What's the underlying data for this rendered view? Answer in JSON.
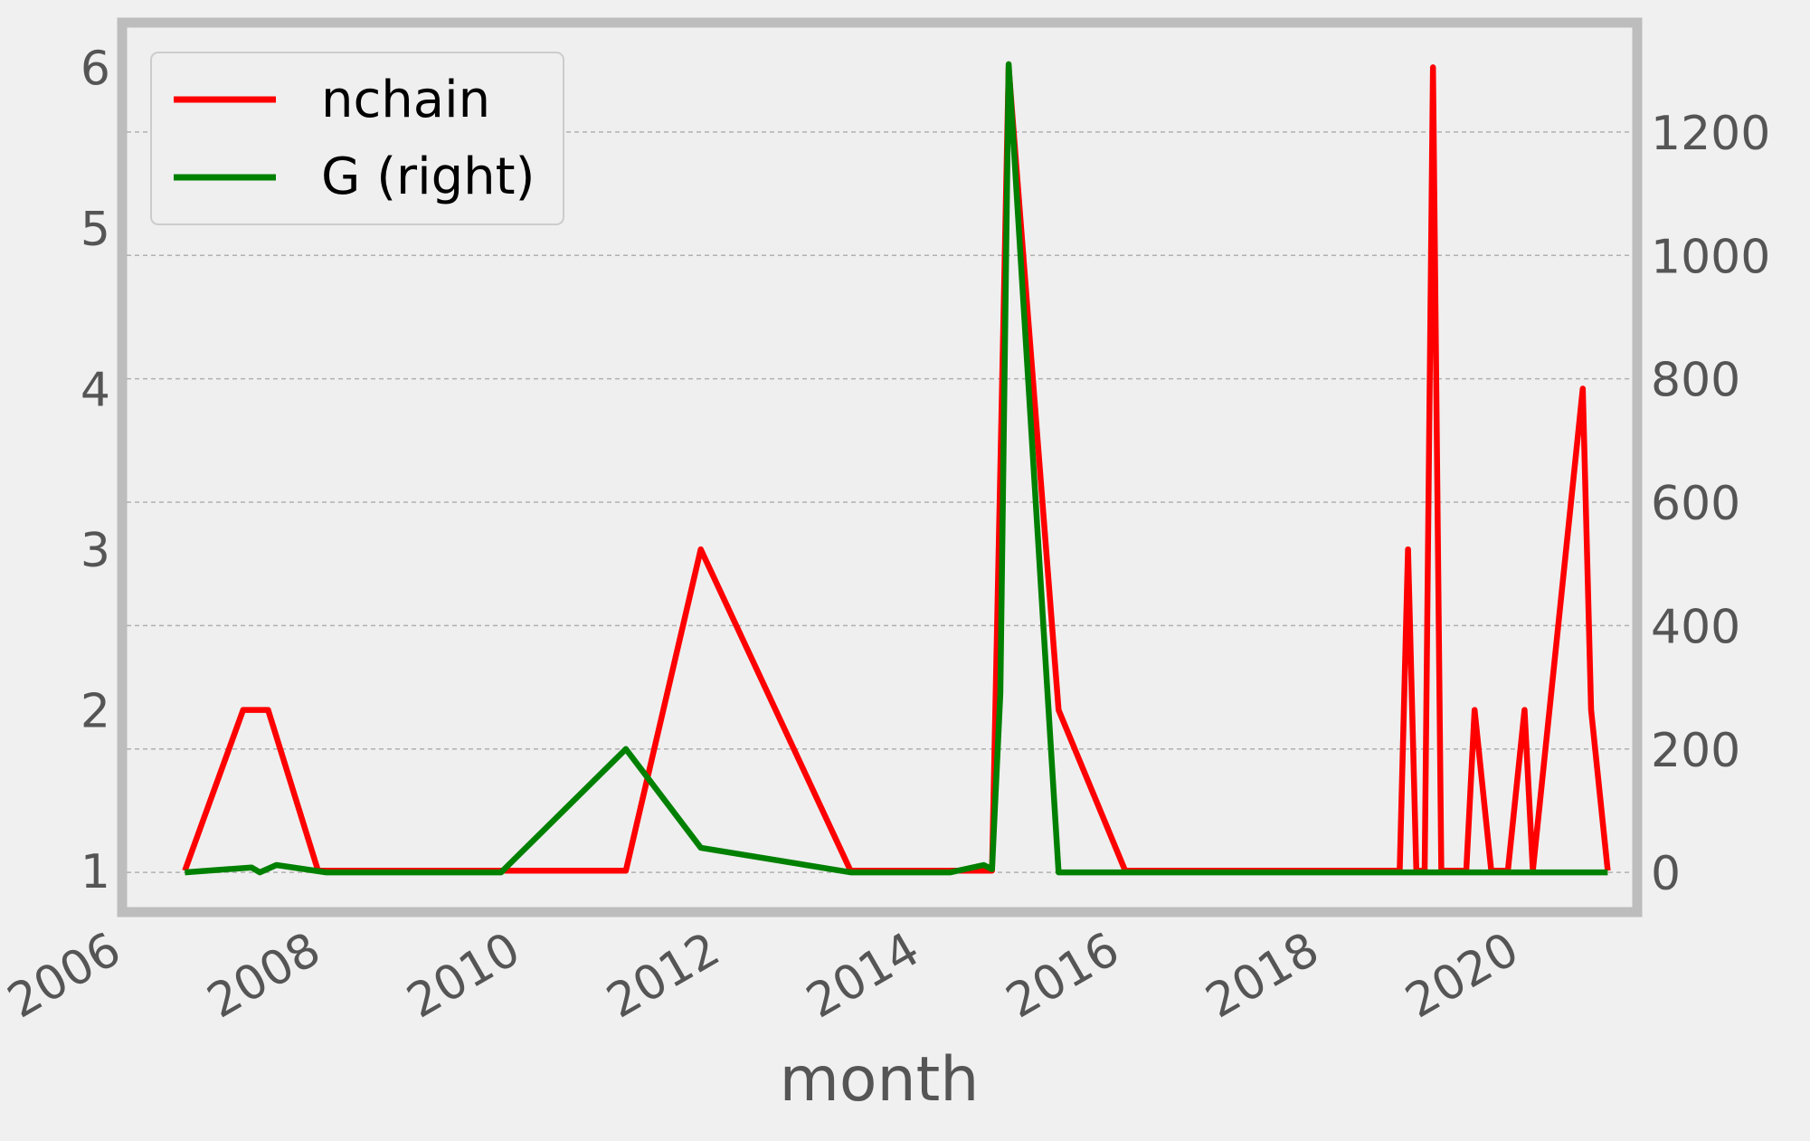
{
  "chart_data": {
    "type": "line",
    "title": "",
    "xlabel": "month",
    "x_ticks": [
      "2006",
      "2008",
      "2010",
      "2012",
      "2014",
      "2016",
      "2018",
      "2020"
    ],
    "y_left_ticks": [
      "1",
      "2",
      "3",
      "4",
      "5",
      "6"
    ],
    "y_right_ticks": [
      "0",
      "200",
      "400",
      "600",
      "800",
      "1000",
      "1200"
    ],
    "xlim": [
      "2006-01",
      "2021-02"
    ],
    "ylim_left": [
      0.77,
      6.25
    ],
    "ylim_right": [
      -57,
      1370
    ],
    "grid": "horizontal, right axis",
    "legend_position": "top-left",
    "colors": {
      "background": "#efefef",
      "frame": "#bdbdbd",
      "grid": "#b0b0b0"
    },
    "series": [
      {
        "name": "nchain",
        "axis": "left",
        "color": "#ff0000",
        "points": [
          [
            "2006-08",
            1
          ],
          [
            "2007-03",
            2
          ],
          [
            "2007-06",
            2
          ],
          [
            "2007-12",
            1
          ],
          [
            "2009-10",
            1
          ],
          [
            "2011-01",
            1
          ],
          [
            "2011-10",
            3
          ],
          [
            "2013-04",
            1
          ],
          [
            "2014-07",
            1
          ],
          [
            "2014-09",
            1
          ],
          [
            "2014-11",
            6
          ],
          [
            "2015-05",
            2
          ],
          [
            "2016-01",
            1
          ],
          [
            "2018-10",
            1
          ],
          [
            "2018-11",
            3
          ],
          [
            "2018-12",
            1
          ],
          [
            "2019-01",
            1
          ],
          [
            "2019-02",
            6
          ],
          [
            "2019-03",
            1
          ],
          [
            "2019-06",
            1
          ],
          [
            "2019-07",
            2
          ],
          [
            "2019-09",
            1
          ],
          [
            "2019-11",
            1
          ],
          [
            "2020-01",
            2
          ],
          [
            "2020-02",
            1
          ],
          [
            "2020-08",
            4
          ],
          [
            "2020-09",
            2
          ],
          [
            "2020-11",
            1
          ]
        ]
      },
      {
        "name": "G (right)",
        "axis": "right",
        "color": "#008000",
        "points": [
          [
            "2006-08",
            0
          ],
          [
            "2007-04",
            8
          ],
          [
            "2007-05",
            0
          ],
          [
            "2007-07",
            12
          ],
          [
            "2008-01",
            0
          ],
          [
            "2009-10",
            0
          ],
          [
            "2011-01",
            200
          ],
          [
            "2011-10",
            40
          ],
          [
            "2013-04",
            0
          ],
          [
            "2014-04",
            0
          ],
          [
            "2014-08",
            12
          ],
          [
            "2014-09",
            5
          ],
          [
            "2014-10",
            290
          ],
          [
            "2014-11",
            1310
          ],
          [
            "2015-05",
            0
          ],
          [
            "2016-01",
            0
          ],
          [
            "2018-10",
            0
          ],
          [
            "2019-06",
            0
          ],
          [
            "2020-11",
            0
          ]
        ]
      }
    ]
  }
}
